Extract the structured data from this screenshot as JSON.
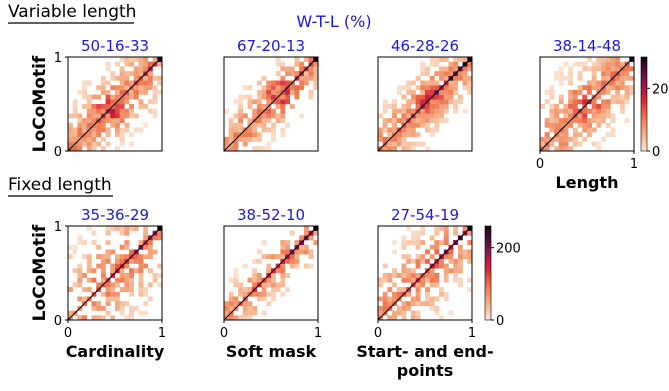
{
  "section_titles": {
    "variable": "Variable length",
    "fixed": "Fixed length"
  },
  "wtl_heading": "W-T-L (%)",
  "ylabel": "LoCoMotif",
  "tick_labels": {
    "zero": "0",
    "one": "1"
  },
  "colorbars": [
    {
      "row": "variable",
      "ticks": [
        "0",
        "20"
      ],
      "max": 30
    },
    {
      "row": "fixed",
      "ticks": [
        "0",
        "200"
      ],
      "max": 260
    }
  ],
  "colors": {
    "wtl_blue": "#1a1adc",
    "cmap_low": "#fbe8dc",
    "cmap_mid": "#e33a2e",
    "cmap_high": "#100410"
  },
  "chart_data": [
    {
      "type": "heatmap",
      "row": "variable",
      "wtl": "50-16-33",
      "xlabel": "",
      "ylabel": "LoCoMotif",
      "xlim": [
        0,
        1
      ],
      "ylim": [
        0,
        1
      ],
      "grid_size": 20,
      "pattern": {
        "spread": 0.25,
        "density": 0.72,
        "diag_strength": 0.55,
        "blob_center": 0.45,
        "blob_strength": 0.6,
        "top_corner": 1.0
      },
      "diagonal_line": true
    },
    {
      "type": "heatmap",
      "row": "variable",
      "wtl": "67-20-13",
      "xlabel": "",
      "ylabel": "",
      "xlim": [
        0,
        1
      ],
      "ylim": [
        0,
        1
      ],
      "grid_size": 20,
      "pattern": {
        "spread": 0.2,
        "density": 0.7,
        "diag_strength": 0.55,
        "blob_center": 0.6,
        "blob_strength": 0.65,
        "top_corner": 1.0
      },
      "diagonal_line": true
    },
    {
      "type": "heatmap",
      "row": "variable",
      "wtl": "46-28-26",
      "xlabel": "",
      "ylabel": "",
      "xlim": [
        0,
        1
      ],
      "ylim": [
        0,
        1
      ],
      "grid_size": 20,
      "pattern": {
        "spread": 0.22,
        "density": 0.75,
        "diag_strength": 0.85,
        "blob_center": 0.55,
        "blob_strength": 0.45,
        "top_corner": 1.0
      },
      "diagonal_line": true
    },
    {
      "type": "heatmap",
      "row": "variable",
      "wtl": "38-14-48",
      "xlabel": "Length",
      "ylabel": "",
      "xlim": [
        0,
        1
      ],
      "ylim": [
        0,
        1
      ],
      "grid_size": 20,
      "pattern": {
        "spread": 0.28,
        "density": 0.68,
        "diag_strength": 0.5,
        "blob_center": 0.5,
        "blob_strength": 0.5,
        "top_corner": 0.95
      },
      "diagonal_line": true
    },
    {
      "type": "heatmap",
      "row": "fixed",
      "wtl": "35-36-29",
      "xlabel": "Cardinality",
      "ylabel": "LoCoMotif",
      "xlim": [
        0,
        1
      ],
      "ylim": [
        0,
        1
      ],
      "grid_size": 20,
      "pattern": {
        "spread": 0.35,
        "density": 0.45,
        "diag_strength": 0.75,
        "blob_center": 0.6,
        "blob_strength": 0.15,
        "top_corner": 1.0
      },
      "diagonal_line": true
    },
    {
      "type": "heatmap",
      "row": "fixed",
      "wtl": "38-52-10",
      "xlabel": "Soft mask",
      "ylabel": "",
      "xlim": [
        0,
        1
      ],
      "ylim": [
        0,
        1
      ],
      "grid_size": 20,
      "pattern": {
        "spread": 0.18,
        "density": 0.55,
        "diag_strength": 0.8,
        "blob_center": 0.7,
        "blob_strength": 0.15,
        "top_corner": 1.0
      },
      "diagonal_line": true
    },
    {
      "type": "heatmap",
      "row": "fixed",
      "wtl": "27-54-19",
      "xlabel": "Start- and end-points",
      "xlabel_lines": [
        "Start- and end-",
        "points"
      ],
      "ylabel": "",
      "xlim": [
        0,
        1
      ],
      "ylim": [
        0,
        1
      ],
      "grid_size": 20,
      "pattern": {
        "spread": 0.3,
        "density": 0.5,
        "diag_strength": 0.8,
        "blob_center": 0.6,
        "blob_strength": 0.15,
        "top_corner": 1.0
      },
      "diagonal_line": true
    }
  ]
}
